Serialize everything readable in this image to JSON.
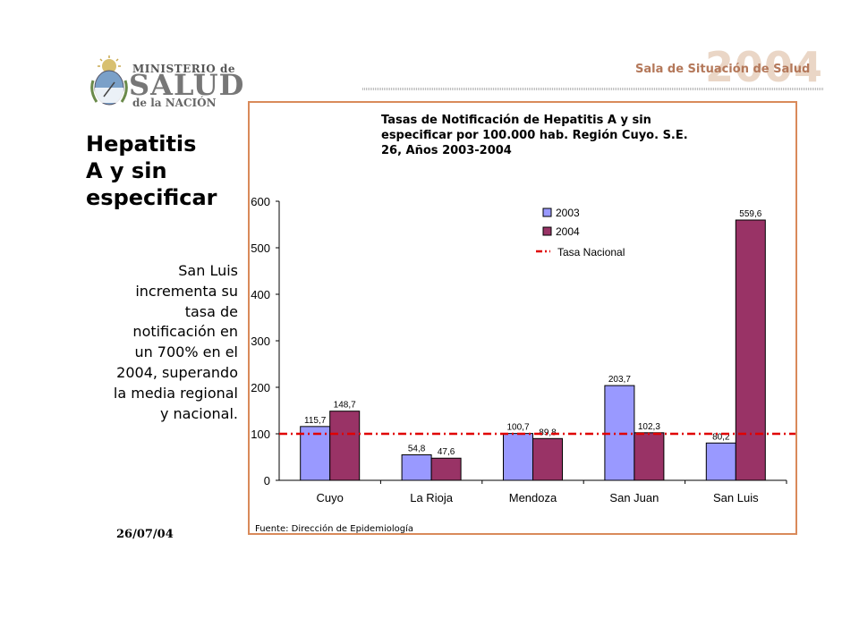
{
  "header": {
    "logo": {
      "line1": "MINISTERIO de",
      "line2": "SALUD",
      "line3": "de la NACIÓN"
    },
    "brand": {
      "tagline": "Sala de Situación de Salud",
      "year": "2004"
    }
  },
  "sidebar": {
    "title_lines": [
      "Hepatitis",
      "A y sin",
      "especificar"
    ],
    "note_lines": [
      "San Luis",
      "incrementa su",
      "tasa de",
      "notificación en",
      "un 700% en el",
      "2004, superando",
      "la media regional",
      "y nacional."
    ],
    "date": "26/07/04"
  },
  "chart_data": {
    "type": "bar",
    "title": [
      "Tasas de Notificación de Hepatitis A y sin",
      "especificar por 100.000 hab. Región Cuyo. S.E.",
      "26, Años 2003-2004"
    ],
    "categories": [
      "Cuyo",
      "La Rioja",
      "Mendoza",
      "San Juan",
      "San Luis"
    ],
    "series": [
      {
        "name": "2003",
        "values": [
          115.7,
          54.8,
          100.7,
          203.7,
          80.2
        ],
        "labels": [
          "115,7",
          "54,8",
          "100,7",
          "203,7",
          "80,2"
        ],
        "color": "#9999ff"
      },
      {
        "name": "2004",
        "values": [
          148.7,
          47.6,
          89.8,
          102.3,
          559.6
        ],
        "labels": [
          "148,7",
          "47,6",
          "89,8",
          "102,3",
          "559,6"
        ],
        "color": "#993366"
      }
    ],
    "reference_line": {
      "name": "Tasa Nacional",
      "value": 100,
      "color": "#e00000",
      "style": "dash-dot"
    },
    "ylim": [
      0,
      600
    ],
    "yticks": [
      0,
      100,
      200,
      300,
      400,
      500,
      600
    ],
    "xlabel": "",
    "ylabel": "",
    "grid": false,
    "legend": "top-right",
    "source": "Fuente: Dirección de Epidemiología"
  }
}
